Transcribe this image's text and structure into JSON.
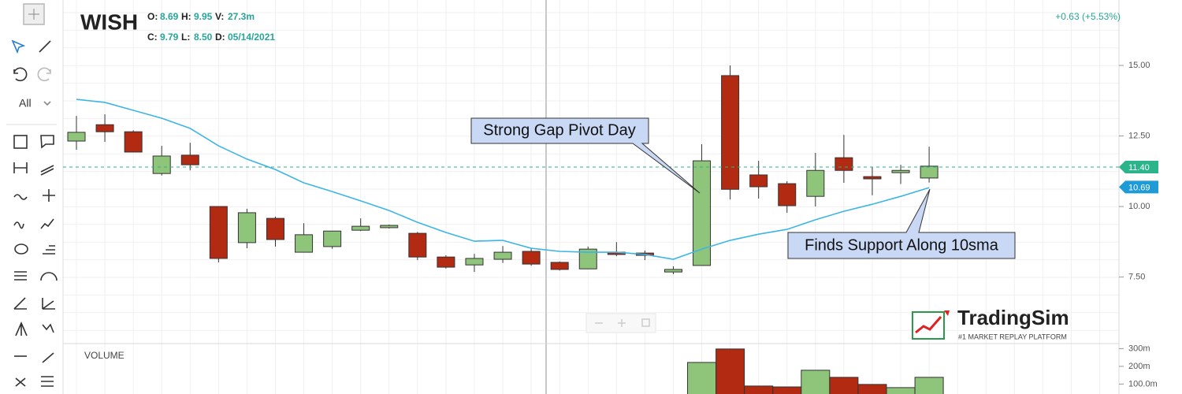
{
  "toolbar": {
    "filter": "All"
  },
  "header": {
    "symbol": "WISH",
    "quote": {
      "labels": [
        "O:",
        "H:",
        "V:",
        "C:",
        "L:",
        "D:"
      ],
      "values": [
        "8.69",
        "9.95",
        "27.3m",
        "9.79",
        "8.50",
        "05/14/2021"
      ]
    },
    "change": "+0.63 (+5.53%)"
  },
  "chart_data": {
    "type": "candlestick",
    "open": [
      12.32,
      12.9,
      12.65,
      11.17,
      11.82,
      10.0,
      8.72,
      9.58,
      8.38,
      8.58,
      9.16,
      9.25,
      9.05,
      8.21,
      7.93,
      8.13,
      8.41,
      8.02,
      7.79,
      8.38,
      8.35,
      7.68,
      7.91,
      14.64,
      11.12,
      10.81,
      10.36,
      11.73,
      11.06,
      11.2,
      11.01
    ],
    "high": [
      13.21,
      13.27,
      12.7,
      12.15,
      12.26,
      10.0,
      9.92,
      9.64,
      9.41,
      9.13,
      9.58,
      9.36,
      9.1,
      8.27,
      8.32,
      8.6,
      8.52,
      8.05,
      8.58,
      8.74,
      8.44,
      7.88,
      12.21,
      15.0,
      11.62,
      10.9,
      11.9,
      12.54,
      11.4,
      11.48,
      12.12
    ],
    "low": [
      12.01,
      12.29,
      11.93,
      11.1,
      11.28,
      8.02,
      8.52,
      8.58,
      8.38,
      8.5,
      9.13,
      9.22,
      8.1,
      7.8,
      7.68,
      8.0,
      7.9,
      7.73,
      7.79,
      8.24,
      8.1,
      7.6,
      7.91,
      10.25,
      10.28,
      9.78,
      10.0,
      10.84,
      10.4,
      10.8,
      10.85
    ],
    "close": [
      12.63,
      12.65,
      11.93,
      11.79,
      11.48,
      8.16,
      9.78,
      8.83,
      9.0,
      9.13,
      9.3,
      9.33,
      8.21,
      7.85,
      8.16,
      8.38,
      7.96,
      7.77,
      8.49,
      8.3,
      8.27,
      7.77,
      11.62,
      10.61,
      10.7,
      10.03,
      11.28,
      11.28,
      10.98,
      11.28,
      11.43
    ],
    "up_color": "#8fc47b",
    "down_color": "#b32a12",
    "sma": {
      "color": "#3db5e6",
      "values": [
        13.8,
        13.69,
        13.41,
        13.13,
        12.77,
        12.15,
        11.68,
        11.31,
        10.84,
        10.53,
        10.2,
        9.86,
        9.44,
        9.08,
        8.77,
        8.8,
        8.52,
        8.41,
        8.38,
        8.38,
        8.3,
        8.13,
        8.49,
        8.8,
        9.02,
        9.19,
        9.53,
        9.83,
        10.08,
        10.36,
        10.67
      ]
    },
    "ylim": [
      5.17,
      17.32
    ],
    "yticks": [
      {
        "value": 7.5,
        "label": "7.50"
      },
      {
        "value": 10,
        "label": "10.00"
      },
      {
        "value": 12.5,
        "label": "12.50"
      },
      {
        "value": 15,
        "label": "15.00"
      }
    ],
    "markers": {
      "values": [
        11.4,
        10.69
      ],
      "value_labels": [
        "11.40",
        "10.69"
      ],
      "colors": [
        "#2bb38a",
        "#1e9bd7"
      ]
    },
    "annotations": [
      "Strong Gap Pivot Day",
      "Finds Support Along 10sma"
    ],
    "volume": {
      "title": "VOLUME",
      "values": [
        null,
        null,
        null,
        null,
        null,
        null,
        null,
        null,
        null,
        null,
        null,
        null,
        null,
        null,
        null,
        null,
        null,
        null,
        null,
        null,
        null,
        null,
        222,
        298,
        89,
        84,
        178,
        138,
        98,
        80,
        138
      ],
      "ylim": [
        44,
        324
      ],
      "yticks": [
        {
          "value": 100,
          "label": "100.0m"
        },
        {
          "value": 200,
          "label": "200m"
        },
        {
          "value": 300,
          "label": "300m"
        }
      ]
    }
  },
  "logo": {
    "name": "TradingSim",
    "tagline": "#1 MARKET REPLAY PLATFORM"
  }
}
